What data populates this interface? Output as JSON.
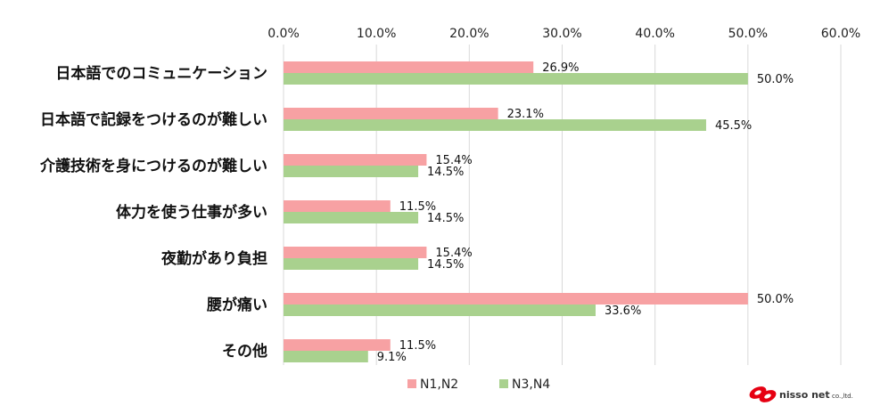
{
  "chart_data": {
    "type": "bar",
    "orientation": "horizontal",
    "categories": [
      "日本語でのコミュニケーション",
      "日本語で記録をつけるのが難しい",
      "介護技術を身につけるのが難しい",
      "体力を使う仕事が多い",
      "夜勤があり負担",
      "腰が痛い",
      "その他"
    ],
    "series": [
      {
        "name": "N1,N2",
        "color": "#f7a1a3",
        "values": [
          26.9,
          23.1,
          15.4,
          11.5,
          15.4,
          50.0,
          11.5
        ],
        "labels": [
          "26.9%",
          "23.1%",
          "15.4%",
          "11.5%",
          "15.4%",
          "50.0%",
          "11.5%"
        ]
      },
      {
        "name": "N3,N4",
        "color": "#a9d18e",
        "values": [
          50.0,
          45.5,
          14.5,
          14.5,
          14.5,
          33.6,
          9.1
        ],
        "labels": [
          "50.0%",
          "45.5%",
          "14.5%",
          "14.5%",
          "14.5%",
          "33.6%",
          "9.1%"
        ]
      }
    ],
    "xlim": [
      0,
      60
    ],
    "ticks": [
      "0.0%",
      "10.0%",
      "20.0%",
      "30.0%",
      "40.0%",
      "50.0%",
      "60.0%"
    ],
    "tick_values": [
      0,
      10,
      20,
      30,
      40,
      50,
      60
    ],
    "grid": true,
    "axis_position": "top",
    "legend_position": "bottom"
  },
  "logo": {
    "name": "nisso net",
    "suffix": "co.,ltd.",
    "color": "#e60012"
  }
}
